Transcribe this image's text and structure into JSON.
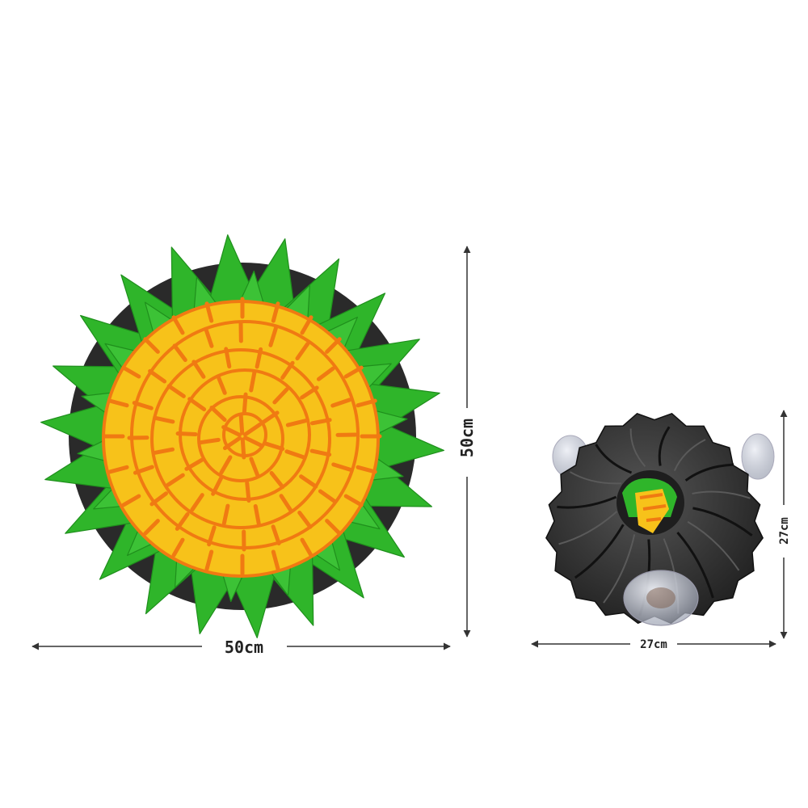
{
  "product": {
    "open_mat": {
      "width_label": "50cm",
      "height_label": "50cm",
      "colors": {
        "leaves": "#2fb52a",
        "leaves_dark": "#1f8f1c",
        "petals": "#f7c21a",
        "stripes": "#f07a12",
        "base": "#2a2a2a"
      }
    },
    "closed_bag": {
      "width_label": "27cm",
      "height_label": "27cm",
      "colors": {
        "fabric": "#2b2b2b",
        "fabric_light": "#4a4a4a",
        "suction_cup": "#c9ccd6"
      }
    }
  }
}
